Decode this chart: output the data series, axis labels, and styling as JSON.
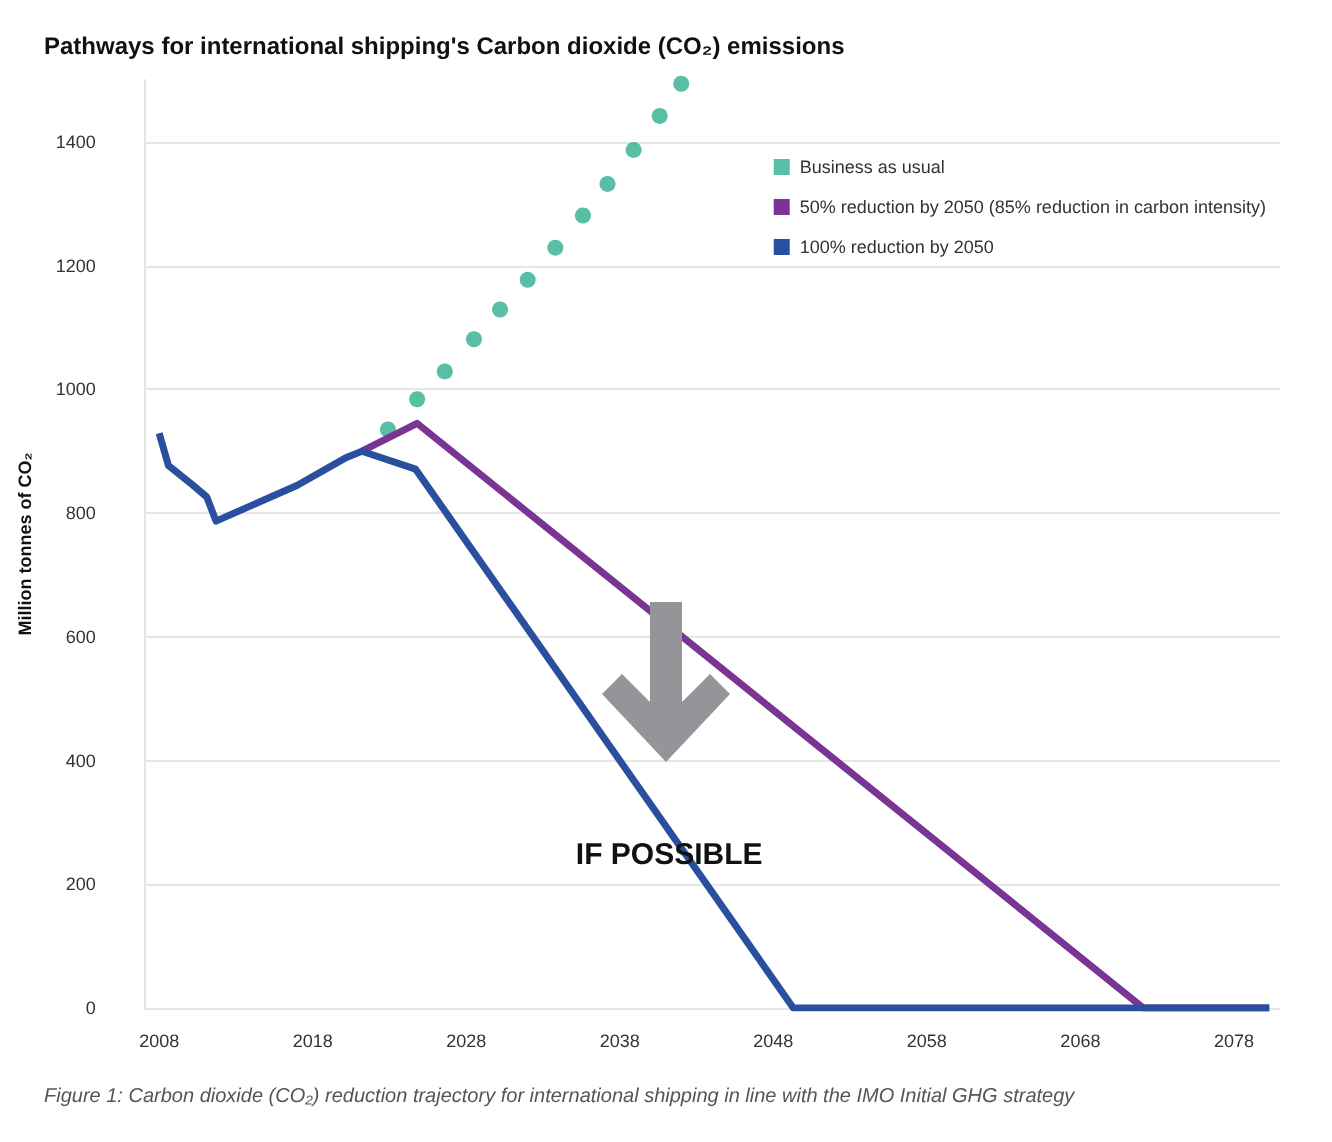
{
  "chart_data": {
    "type": "line",
    "title": "Pathways for international shipping's Carbon dioxide (CO₂) emissions",
    "ylabel": "Million tonnes of CO₂",
    "annotations": [
      "IF POSSIBLE",
      "Figure 1: Carbon dioxide (CO₂) reduction trajectory for international shipping in line with the IMO Initial GHG strategy"
    ],
    "series": [
      {
        "name": "Business as usual",
        "type": "scatter",
        "marker": "circle",
        "color": "#2eae8e",
        "x": [
          2022.9,
          2024.8,
          2026.6,
          2028.5,
          2030.2,
          2032,
          2033.8,
          2035.6,
          2037.2,
          2038.9,
          2040.6,
          2042
        ],
        "values": [
          935,
          984,
          1029,
          1081,
          1129,
          1177,
          1229,
          1281,
          1332,
          1387,
          1442,
          1494
        ]
      },
      {
        "name": "50% reduction by 2050 (85% reduction in carbon intensity)",
        "color": "#7a3594",
        "x": [
          2021.2,
          2024.8,
          2072.1,
          2080.3
        ],
        "values": [
          900,
          945,
          0,
          0
        ]
      },
      {
        "name": "100% reduction by 2050",
        "color": "#2a4f9e",
        "x": [
          2008,
          2008.6,
          2010.2,
          2011.1,
          2011.7,
          2017,
          2020.2,
          2021.2,
          2024.7,
          2049.3,
          2080.3
        ],
        "values": [
          929,
          877,
          845,
          826,
          787,
          845,
          890,
          900,
          871,
          0,
          0
        ]
      }
    ],
    "xlim": [
      2007,
      2081
    ],
    "xticks": [
      2008,
      2018,
      2028,
      2038,
      2048,
      2058,
      2068,
      2078
    ],
    "ylim": [
      0,
      1500
    ],
    "yticks": [
      0,
      200,
      400,
      600,
      800,
      1000,
      1200,
      1400
    ],
    "grid": "y",
    "legend": "top right"
  }
}
